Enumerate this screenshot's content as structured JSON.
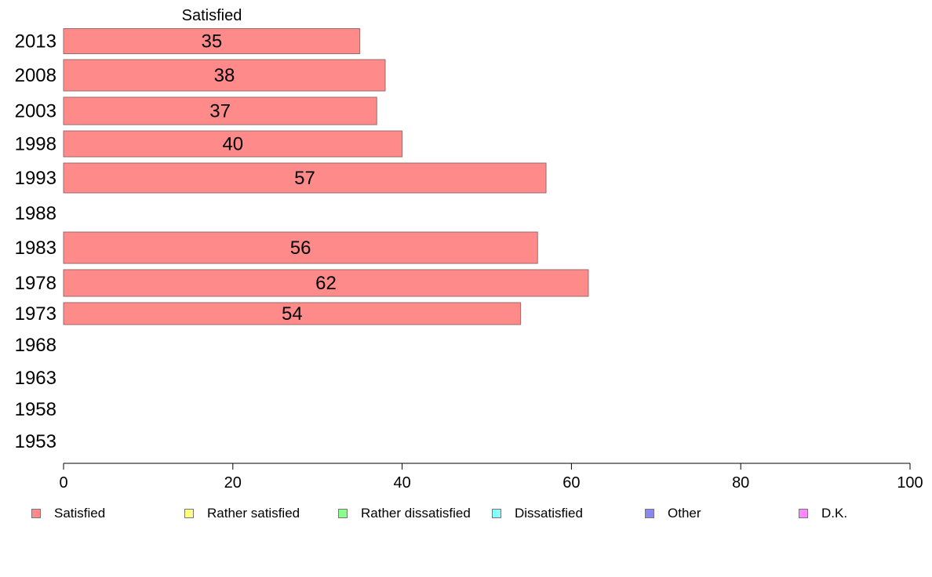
{
  "chart_data": {
    "type": "bar",
    "orientation": "horizontal",
    "series_header": "Satisfied",
    "categories": [
      "2013",
      "2008",
      "2003",
      "1998",
      "1993",
      "1988",
      "1983",
      "1978",
      "1973",
      "1968",
      "1963",
      "1958",
      "1953"
    ],
    "series": [
      {
        "name": "Satisfied",
        "color": "#ff8a8a",
        "values": [
          35,
          38,
          37,
          40,
          57,
          null,
          56,
          62,
          54,
          null,
          null,
          null,
          null
        ]
      }
    ],
    "xlim": [
      0,
      100
    ],
    "xticks": [
      0,
      20,
      40,
      60,
      80,
      100
    ],
    "grid": false,
    "legend_position": "bottom"
  },
  "legend": [
    {
      "label": "Satisfied",
      "color": "#ff8a8a"
    },
    {
      "label": "Rather satisfied",
      "color": "#ffff88"
    },
    {
      "label": "Rather dissatisfied",
      "color": "#88ff88"
    },
    {
      "label": "Dissatisfied",
      "color": "#88ffff"
    },
    {
      "label": "Other",
      "color": "#8888ee"
    },
    {
      "label": "D.K.",
      "color": "#ff88ff"
    }
  ]
}
